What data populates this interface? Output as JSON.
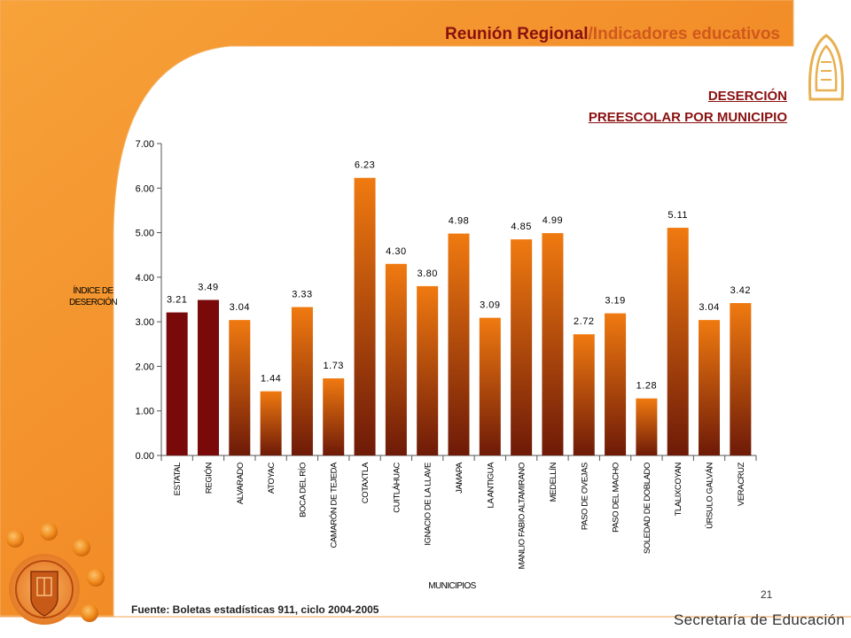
{
  "header": {
    "title_part1": "Reunión Regional",
    "title_part2": "/Indicadores educativos",
    "subtitle_line1": "DESERCIÓN",
    "subtitle_line2": "PREESCOLAR POR MUNICIPIO"
  },
  "colors": {
    "accent_orange": "#f08a24",
    "dark_bar": "#7a0a0a",
    "bar_top": "#f07a10",
    "bar_bottom": "#6e1a08",
    "title_red": "#8a1010"
  },
  "chart_data": {
    "type": "bar",
    "ylabel": "ÍNDICE DE DESERCIÓN",
    "xlabel": "MUNICIPIOS",
    "ylim": [
      0,
      7
    ],
    "yticks": [
      "0.00",
      "1.00",
      "2.00",
      "3.00",
      "4.00",
      "5.00",
      "6.00",
      "7.00"
    ],
    "categories": [
      "ESTATAL",
      "REGIÓN",
      "ALVARADO",
      "ATOYAC",
      "BOCA DEL RÍO",
      "CAMARÓN DE TEJEDA",
      "COTAXTLA",
      "CUITLÁHUAC",
      "IGNACIO DE LA LLAVE",
      "JAMAPA",
      "LA ANTIGUA",
      "MANLIO FABIO ALTAMIRANO",
      "MEDELLÍN",
      "PASO DE OVEJAS",
      "PASO DEL MACHO",
      "SOLEDAD DE DOBLADO",
      "TLALIXCOYAN",
      "ÚRSULO GALVÁN",
      "VERACRUZ"
    ],
    "values": [
      3.21,
      3.49,
      3.04,
      1.44,
      3.33,
      1.73,
      6.23,
      4.3,
      3.8,
      4.98,
      3.09,
      4.85,
      4.99,
      2.72,
      3.19,
      1.28,
      5.11,
      3.04,
      3.42
    ],
    "value_labels": [
      "3.21",
      "3.49",
      "3.04",
      "1.44",
      "3.33",
      "1.73",
      "6.23",
      "4.30",
      "3.80",
      "4.98",
      "3.09",
      "4.85",
      "4.99",
      "2.72",
      "3.19",
      "1.28",
      "5.11",
      "3.04",
      "3.42"
    ],
    "highlight_categories": [
      "ESTATAL",
      "REGIÓN"
    ],
    "grid": false,
    "legend": "none"
  },
  "footer": {
    "source": "Fuente: Boletas estadísticas 911, ciclo 2004-2005",
    "page_number": "21",
    "org": "Secretaría de Educación"
  },
  "icons": [
    "ornamental-logo-icon",
    "coat-of-arms-icon",
    "orange-dot-decoration"
  ]
}
